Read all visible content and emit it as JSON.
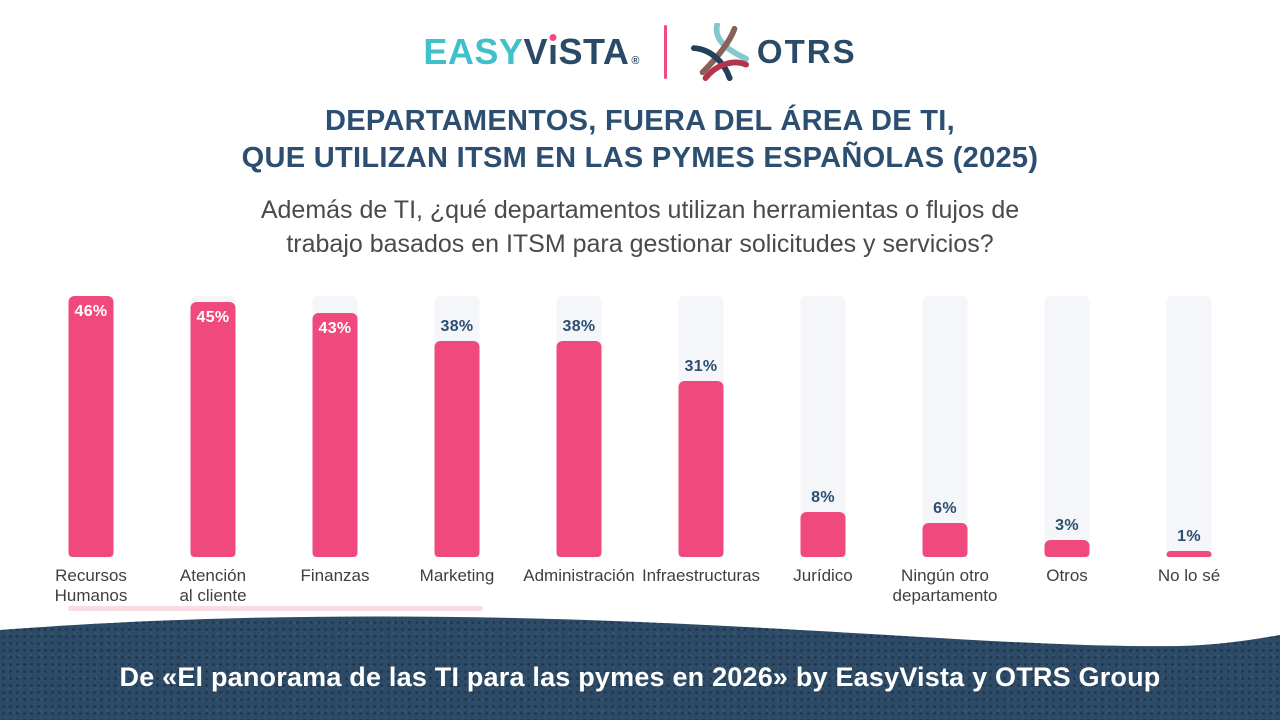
{
  "header": {
    "easyvista_logo": {
      "part_teal": "EASY",
      "part_navy_pre": "V",
      "part_navy_post": "STA",
      "registered": "®"
    },
    "otrs_logo_text": "OTRS"
  },
  "title": {
    "line1": "DEPARTAMENTOS, FUERA DEL ÁREA DE TI,",
    "line2": "QUE UTILIZAN ITSM EN LAS PYMES ESPAÑOLAS (2025)"
  },
  "subtitle": {
    "line1": "Además de TI, ¿qué departamentos utilizan herramientas o flujos de",
    "line2": "trabajo basados en ITSM para gestionar solicitudes y servicios?"
  },
  "chart_data": {
    "type": "bar",
    "title": "Departamentos, fuera del área de TI, que utilizan ITSM en las pymes españolas (2025)",
    "categories": [
      "Recursos\nHumanos",
      "Atención\nal cliente",
      "Finanzas",
      "Marketing",
      "Administración",
      "Infraestructuras",
      "Jurídico",
      "Ningún otro\ndepartamento",
      "Otros",
      "No lo sé"
    ],
    "values": [
      46,
      45,
      43,
      38,
      38,
      31,
      8,
      6,
      3,
      1
    ],
    "value_labels": [
      "46%",
      "45%",
      "43%",
      "38%",
      "38%",
      "31%",
      "8%",
      "6%",
      "3%",
      "1%"
    ],
    "xlabel": "",
    "ylabel": "",
    "ylim": [
      0,
      46
    ],
    "grid": false,
    "legend": false,
    "bar_label_inside_threshold": 43
  },
  "footer": {
    "text": "De «El panorama de las TI para las pymes en 2026» by EasyVista y OTRS Group"
  },
  "colors": {
    "bar_pink": "#F0497D",
    "track": "#F4F6FA",
    "title_navy": "#2C4E70",
    "footer_navy": "#2D4A66",
    "logo_teal": "#3FC0CA",
    "logo_navy": "#2B4A68",
    "category_gray": "#3F3F3F",
    "otrs_mark_teal": "#82C8CE",
    "otrs_mark_brown": "#8A6158",
    "otrs_mark_navy": "#23405C",
    "otrs_mark_crimson": "#B5334C"
  }
}
